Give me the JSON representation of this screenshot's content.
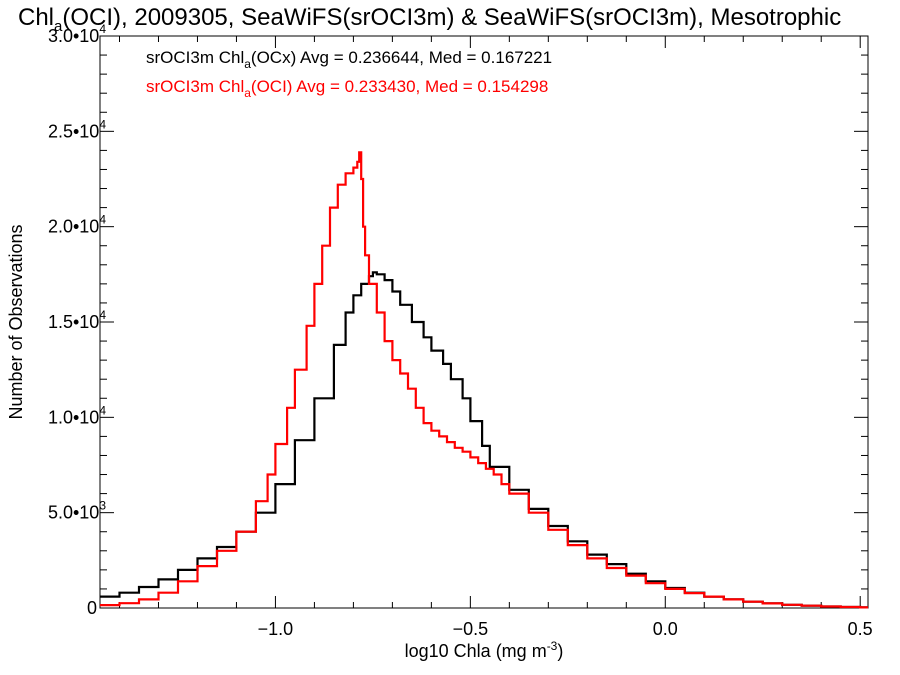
{
  "chart_data": {
    "type": "line",
    "step": true,
    "title": {
      "pre": "Chl",
      "sub": "a",
      "post": "(OCI), 2009305, SeaWiFS(srOCI3m) & SeaWiFS(srOCI3m), Mesotrophic"
    },
    "xlabel": {
      "pre": "log10 Chla (mg m",
      "sup": "-3",
      "post": ")"
    },
    "ylabel": "Number of Observations",
    "xlim": [
      -1.45,
      0.52
    ],
    "ylim": [
      0,
      30000
    ],
    "x_ticks": [
      {
        "value": -1.0,
        "label": "−1.0"
      },
      {
        "value": -0.5,
        "label": "−0.5"
      },
      {
        "value": 0.0,
        "label": "0.0"
      },
      {
        "value": 0.5,
        "label": "0.5"
      }
    ],
    "y_ticks": [
      {
        "value": 0,
        "mantissa": "0",
        "exp": ""
      },
      {
        "value": 5000,
        "mantissa": "5.0•10",
        "exp": "3"
      },
      {
        "value": 10000,
        "mantissa": "1.0•10",
        "exp": "4"
      },
      {
        "value": 15000,
        "mantissa": "1.5•10",
        "exp": "4"
      },
      {
        "value": 20000,
        "mantissa": "2.0•10",
        "exp": "4"
      },
      {
        "value": 25000,
        "mantissa": "2.5•10",
        "exp": "4"
      },
      {
        "value": 30000,
        "mantissa": "3.0•10",
        "exp": "4"
      }
    ],
    "legend_placement": "top-left",
    "series": [
      {
        "legend": {
          "pre": "srOCI3m Chl",
          "sub": "a",
          "post": "(OCx) Avg = 0.236644, Med = 0.167221"
        },
        "color": "#000000",
        "points": [
          [
            -1.45,
            600
          ],
          [
            -1.4,
            800
          ],
          [
            -1.35,
            1100
          ],
          [
            -1.3,
            1500
          ],
          [
            -1.25,
            2000
          ],
          [
            -1.2,
            2600
          ],
          [
            -1.15,
            3200
          ],
          [
            -1.1,
            4000
          ],
          [
            -1.05,
            5000
          ],
          [
            -1.0,
            6500
          ],
          [
            -0.95,
            8800
          ],
          [
            -0.9,
            11000
          ],
          [
            -0.85,
            13800
          ],
          [
            -0.82,
            15500
          ],
          [
            -0.8,
            16400
          ],
          [
            -0.78,
            17000
          ],
          [
            -0.76,
            17400
          ],
          [
            -0.75,
            17600
          ],
          [
            -0.74,
            17500
          ],
          [
            -0.72,
            17200
          ],
          [
            -0.7,
            16600
          ],
          [
            -0.68,
            15900
          ],
          [
            -0.65,
            15000
          ],
          [
            -0.62,
            14200
          ],
          [
            -0.6,
            13500
          ],
          [
            -0.57,
            12800
          ],
          [
            -0.55,
            12000
          ],
          [
            -0.52,
            11000
          ],
          [
            -0.5,
            9800
          ],
          [
            -0.47,
            8500
          ],
          [
            -0.45,
            7400
          ],
          [
            -0.4,
            6200
          ],
          [
            -0.35,
            5200
          ],
          [
            -0.3,
            4300
          ],
          [
            -0.25,
            3500
          ],
          [
            -0.2,
            2800
          ],
          [
            -0.15,
            2300
          ],
          [
            -0.1,
            1800
          ],
          [
            -0.05,
            1400
          ],
          [
            0.0,
            1050
          ],
          [
            0.05,
            800
          ],
          [
            0.1,
            600
          ],
          [
            0.15,
            450
          ],
          [
            0.2,
            330
          ],
          [
            0.25,
            240
          ],
          [
            0.3,
            170
          ],
          [
            0.35,
            120
          ],
          [
            0.4,
            80
          ],
          [
            0.45,
            50
          ],
          [
            0.5,
            30
          ]
        ]
      },
      {
        "legend": {
          "pre": "srOCI3m Chl",
          "sub": "a",
          "post": "(OCI) Avg = 0.233430, Med = 0.154298"
        },
        "color": "#ff0000",
        "points": [
          [
            -1.45,
            150
          ],
          [
            -1.4,
            250
          ],
          [
            -1.35,
            450
          ],
          [
            -1.3,
            800
          ],
          [
            -1.25,
            1400
          ],
          [
            -1.2,
            2200
          ],
          [
            -1.15,
            3000
          ],
          [
            -1.1,
            4000
          ],
          [
            -1.05,
            5600
          ],
          [
            -1.02,
            7000
          ],
          [
            -1.0,
            8600
          ],
          [
            -0.97,
            10500
          ],
          [
            -0.95,
            12500
          ],
          [
            -0.92,
            14800
          ],
          [
            -0.9,
            17000
          ],
          [
            -0.88,
            19000
          ],
          [
            -0.86,
            21000
          ],
          [
            -0.84,
            22200
          ],
          [
            -0.82,
            22800
          ],
          [
            -0.8,
            23100
          ],
          [
            -0.79,
            23400
          ],
          [
            -0.785,
            23900
          ],
          [
            -0.78,
            22500
          ],
          [
            -0.775,
            20000
          ],
          [
            -0.77,
            18500
          ],
          [
            -0.76,
            17000
          ],
          [
            -0.74,
            15500
          ],
          [
            -0.72,
            14000
          ],
          [
            -0.7,
            13000
          ],
          [
            -0.68,
            12300
          ],
          [
            -0.66,
            11500
          ],
          [
            -0.64,
            10500
          ],
          [
            -0.62,
            9700
          ],
          [
            -0.6,
            9300
          ],
          [
            -0.58,
            9000
          ],
          [
            -0.56,
            8700
          ],
          [
            -0.54,
            8400
          ],
          [
            -0.52,
            8200
          ],
          [
            -0.5,
            7900
          ],
          [
            -0.48,
            7600
          ],
          [
            -0.46,
            7300
          ],
          [
            -0.44,
            7000
          ],
          [
            -0.42,
            6500
          ],
          [
            -0.4,
            6000
          ],
          [
            -0.35,
            5000
          ],
          [
            -0.3,
            4100
          ],
          [
            -0.25,
            3300
          ],
          [
            -0.2,
            2600
          ],
          [
            -0.15,
            2100
          ],
          [
            -0.1,
            1700
          ],
          [
            -0.05,
            1300
          ],
          [
            0.0,
            1000
          ],
          [
            0.05,
            780
          ],
          [
            0.1,
            600
          ],
          [
            0.15,
            450
          ],
          [
            0.2,
            330
          ],
          [
            0.25,
            240
          ],
          [
            0.3,
            170
          ],
          [
            0.35,
            120
          ],
          [
            0.4,
            80
          ],
          [
            0.45,
            50
          ],
          [
            0.5,
            30
          ]
        ]
      }
    ]
  }
}
